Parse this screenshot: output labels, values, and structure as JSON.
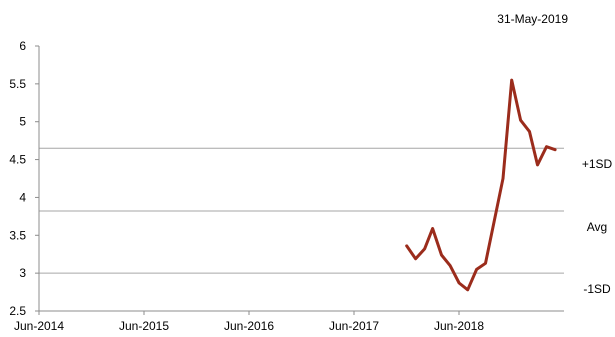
{
  "chart_data": {
    "type": "line",
    "date_label": "31-May-2019",
    "x_ticks": [
      "Jun-2014",
      "Jun-2015",
      "Jun-2016",
      "Jun-2017",
      "Jun-2018"
    ],
    "ylim": [
      2.5,
      6
    ],
    "y_ticks": [
      "2.5",
      "3",
      "3.5",
      "4",
      "4.5",
      "5",
      "5.5",
      "6"
    ],
    "grid": false,
    "reference_lines": [
      {
        "label": "+1SD",
        "value": 4.65
      },
      {
        "label": "Avg",
        "value": 3.82
      },
      {
        "label": "-1SD",
        "value": 3.0
      }
    ],
    "series": [
      {
        "color": "#9b2c1c",
        "points": [
          [
            "2017-12-01",
            3.36
          ],
          [
            "2018-01-01",
            3.19
          ],
          [
            "2018-02-01",
            3.32
          ],
          [
            "2018-03-01",
            3.59
          ],
          [
            "2018-04-01",
            3.24
          ],
          [
            "2018-05-01",
            3.1
          ],
          [
            "2018-06-01",
            2.87
          ],
          [
            "2018-07-01",
            2.78
          ],
          [
            "2018-08-01",
            3.05
          ],
          [
            "2018-09-01",
            3.13
          ],
          [
            "2018-10-01",
            3.68
          ],
          [
            "2018-11-01",
            4.25
          ],
          [
            "2018-12-01",
            5.55
          ],
          [
            "2019-01-01",
            5.02
          ],
          [
            "2019-02-01",
            4.87
          ],
          [
            "2019-03-01",
            4.43
          ],
          [
            "2019-04-01",
            4.67
          ],
          [
            "2019-05-01",
            4.63
          ]
        ]
      }
    ]
  }
}
